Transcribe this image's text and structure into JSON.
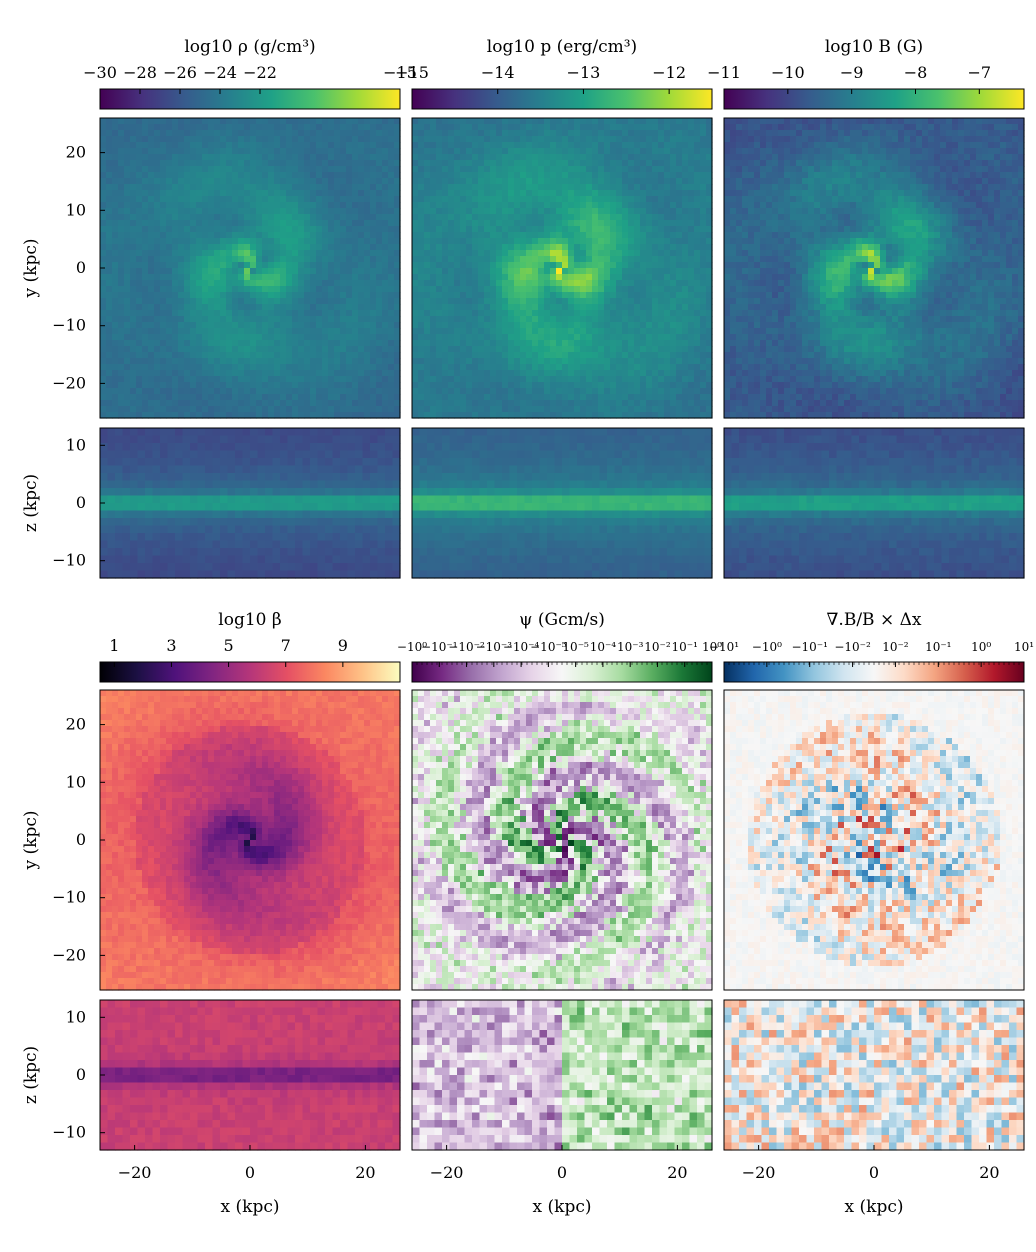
{
  "figure": {
    "x_axis_label": "x (kpc)",
    "y_axis_label": "y (kpc)",
    "z_axis_label": "z (kpc)",
    "x_ticks": [
      "−20",
      "0",
      "20"
    ],
    "y_ticks": [
      "20",
      "10",
      "0",
      "−10",
      "−20"
    ],
    "z_ticks": [
      "10",
      "0",
      "−10"
    ]
  },
  "chart_data": [
    {
      "type": "heatmap",
      "title": "log10 ρ (g/cm³)",
      "colormap": "viridis",
      "colorbar_ticks": [
        "−30",
        "−28",
        "−26",
        "−24",
        "−22",
        "−15"
      ],
      "colorbar_range": [
        -30,
        -15
      ],
      "views": [
        "x–y face-on",
        "x–z edge-on"
      ],
      "xlim": [
        -26,
        26
      ],
      "ylim": [
        -26,
        26
      ],
      "zlim": [
        -13,
        13
      ]
    },
    {
      "type": "heatmap",
      "title": "log10 p (erg/cm³)",
      "colormap": "viridis",
      "colorbar_ticks": [
        "−15",
        "−14",
        "−13",
        "−12"
      ],
      "colorbar_range": [
        -15,
        -11.5
      ],
      "views": [
        "x–y face-on",
        "x–z edge-on"
      ],
      "xlim": [
        -26,
        26
      ],
      "ylim": [
        -26,
        26
      ],
      "zlim": [
        -13,
        13
      ]
    },
    {
      "type": "heatmap",
      "title": "log10 B (G)",
      "colormap": "viridis",
      "colorbar_ticks": [
        "−11",
        "−10",
        "−9",
        "−8",
        "−7"
      ],
      "colorbar_range": [
        -11,
        -6.3
      ],
      "views": [
        "x–y face-on",
        "x–z edge-on"
      ],
      "xlim": [
        -26,
        26
      ],
      "ylim": [
        -26,
        26
      ],
      "zlim": [
        -13,
        13
      ]
    },
    {
      "type": "heatmap",
      "title": "log10 β",
      "colormap": "magma",
      "colorbar_ticks": [
        "1",
        "3",
        "5",
        "7",
        "9"
      ],
      "colorbar_range": [
        0.5,
        11
      ],
      "views": [
        "x–y face-on",
        "x–z edge-on"
      ],
      "xlim": [
        -26,
        26
      ],
      "ylim": [
        -26,
        26
      ],
      "zlim": [
        -13,
        13
      ]
    },
    {
      "type": "heatmap",
      "title": "ψ (Gcm/s)",
      "colormap": "PRGn",
      "scale": "symlog",
      "colorbar_ticks": [
        "−10⁰",
        "−10⁻¹",
        "−10⁻²",
        "−10⁻³",
        "−10⁻⁴",
        "−10⁻⁵",
        "10⁻⁵",
        "10⁻⁴",
        "10⁻³",
        "10⁻²",
        "10⁻¹",
        "10⁰"
      ],
      "views": [
        "x–y face-on",
        "x–z edge-on"
      ],
      "xlim": [
        -26,
        26
      ],
      "ylim": [
        -26,
        26
      ],
      "zlim": [
        -13,
        13
      ]
    },
    {
      "type": "heatmap",
      "title": "∇.B/B × Δx",
      "colormap": "RdBu_r",
      "scale": "symlog",
      "colorbar_ticks": [
        "−10¹",
        "−10⁰",
        "−10⁻¹",
        "−10⁻²",
        "10⁻²",
        "10⁻¹",
        "10⁰",
        "10¹"
      ],
      "views": [
        "x–y face-on",
        "x–z edge-on"
      ],
      "xlim": [
        -26,
        26
      ],
      "ylim": [
        -26,
        26
      ],
      "zlim": [
        -13,
        13
      ]
    }
  ],
  "colors": {
    "viridis": [
      "#440154",
      "#46327e",
      "#365c8d",
      "#277f8e",
      "#1fa187",
      "#4ac16d",
      "#a0da39",
      "#fde725"
    ],
    "magma": [
      "#000004",
      "#1c1044",
      "#4f127b",
      "#812581",
      "#b5367a",
      "#e55064",
      "#fb8761",
      "#fec287",
      "#fcfdbf"
    ],
    "PRGn": [
      "#40004b",
      "#762a83",
      "#9970ab",
      "#c2a5cf",
      "#e7d4e8",
      "#f7f7f7",
      "#d9f0d3",
      "#a6dba0",
      "#5aae61",
      "#1b7837",
      "#00441b"
    ],
    "RdBu_r": [
      "#053061",
      "#2166ac",
      "#4393c3",
      "#92c5de",
      "#d1e5f0",
      "#f7f7f7",
      "#fddbc7",
      "#f4a582",
      "#d6604d",
      "#b2182b",
      "#67001f"
    ]
  }
}
